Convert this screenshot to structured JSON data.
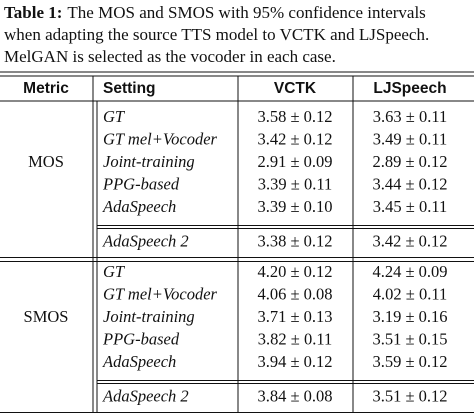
{
  "caption": {
    "label": "Table 1:",
    "lines": [
      "The MOS and SMOS with 95% confidence intervals",
      "when adapting the source TTS model to VCTK and LJSpeech.",
      "MelGAN is selected as the vocoder in each case."
    ]
  },
  "table": {
    "header": [
      "Metric",
      "Setting",
      "VCTK",
      "LJSpeech"
    ],
    "groups": [
      {
        "metric": "MOS",
        "rows": [
          [
            "GT",
            "3.58 ± 0.12",
            "3.63 ± 0.11"
          ],
          [
            "GT mel+Vocoder",
            "3.42 ± 0.12",
            "3.49 ± 0.11"
          ],
          [
            "Joint-training",
            "2.91 ± 0.09",
            "2.89 ± 0.12"
          ],
          [
            "PPG-based",
            "3.39 ± 0.11",
            "3.44 ± 0.12"
          ],
          [
            "AdaSpeech",
            "3.39 ± 0.10",
            "3.45 ± 0.11"
          ]
        ],
        "ours": [
          "AdaSpeech 2",
          "3.38 ± 0.12",
          "3.42 ± 0.12"
        ]
      },
      {
        "metric": "SMOS",
        "rows": [
          [
            "GT",
            "4.20 ± 0.12",
            "4.24 ± 0.09"
          ],
          [
            "GT mel+Vocoder",
            "4.06 ± 0.08",
            "4.02 ± 0.11"
          ],
          [
            "Joint-training",
            "3.71 ± 0.13",
            "3.19 ± 0.16"
          ],
          [
            "PPG-based",
            "3.82 ± 0.11",
            "3.51 ± 0.15"
          ],
          [
            "AdaSpeech",
            "3.94 ± 0.12",
            "3.59 ± 0.12"
          ]
        ],
        "ours": [
          "AdaSpeech 2",
          "3.84 ± 0.08",
          "3.51 ± 0.12"
        ]
      }
    ]
  }
}
